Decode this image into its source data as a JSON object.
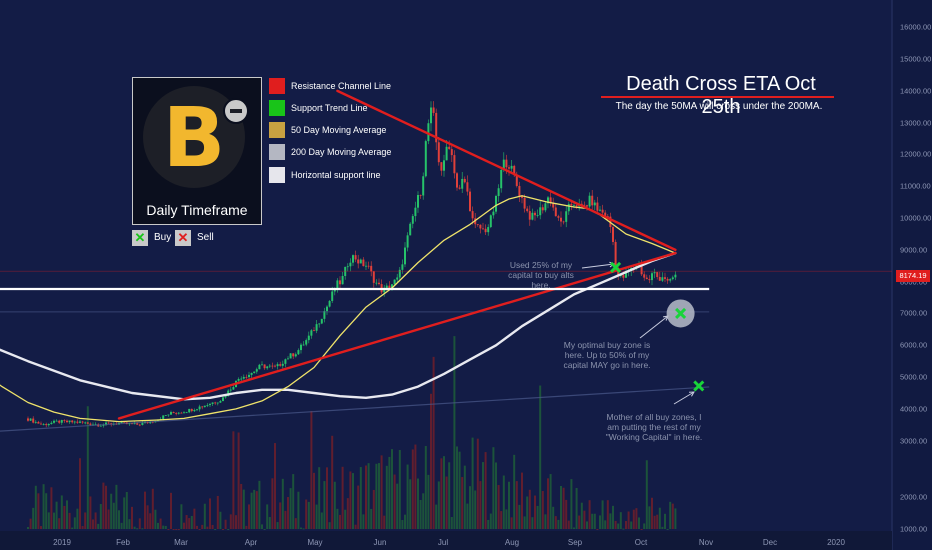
{
  "chart_data": {
    "type": "candlestick",
    "title": "Death Cross ETA Oct 25th",
    "subtitle": "The day the 50MA will cross under the 200MA.",
    "timeframe": "Daily Timeframe",
    "x_ticks": [
      "2019",
      "Feb",
      "Mar",
      "Apr",
      "May",
      "Jun",
      "Jul",
      "Aug",
      "Sep",
      "Oct",
      "Nov",
      "Dec",
      "2020"
    ],
    "y_ticks": [
      "16000.00",
      "15000.00",
      "14000.00",
      "13000.00",
      "12000.00",
      "11000.00",
      "10000.00",
      "9000.00",
      "8000.00",
      "7000.00",
      "6000.00",
      "5000.00",
      "4000.00",
      "3000.00",
      "2000.00",
      "1000.00"
    ],
    "y_range": [
      1000,
      16000
    ],
    "current_price_label": "8174.19",
    "current_price": 8174,
    "grid": false,
    "price_path": [
      [
        0,
        3700
      ],
      [
        6,
        3500
      ],
      [
        12,
        3600
      ],
      [
        20,
        3580
      ],
      [
        28,
        3500
      ],
      [
        35,
        3550
      ],
      [
        42,
        3500
      ],
      [
        48,
        3600
      ],
      [
        55,
        3850
      ],
      [
        62,
        3950
      ],
      [
        68,
        4100
      ],
      [
        75,
        4300
      ],
      [
        82,
        5000
      ],
      [
        86,
        5100
      ],
      [
        90,
        5350
      ],
      [
        96,
        5300
      ],
      [
        100,
        5600
      ],
      [
        104,
        5800
      ],
      [
        108,
        6200
      ],
      [
        112,
        6700
      ],
      [
        116,
        7300
      ],
      [
        119,
        7900
      ],
      [
        121,
        8000
      ],
      [
        124,
        8700
      ],
      [
        126,
        8800
      ],
      [
        128,
        8600
      ],
      [
        131,
        8500
      ],
      [
        134,
        8000
      ],
      [
        137,
        7700
      ],
      [
        140,
        7900
      ],
      [
        143,
        8100
      ],
      [
        146,
        9200
      ],
      [
        149,
        10200
      ],
      [
        152,
        11000
      ],
      [
        154,
        12800
      ],
      [
        156,
        13500
      ],
      [
        158,
        12000
      ],
      [
        160,
        11400
      ],
      [
        162,
        12500
      ],
      [
        164,
        11800
      ],
      [
        166,
        10700
      ],
      [
        168,
        11300
      ],
      [
        170,
        10600
      ],
      [
        172,
        9700
      ],
      [
        174,
        9700
      ],
      [
        176,
        9600
      ],
      [
        178,
        9800
      ],
      [
        181,
        10700
      ],
      [
        183,
        11700
      ],
      [
        185,
        11800
      ],
      [
        187,
        11400
      ],
      [
        189,
        10900
      ],
      [
        191,
        10500
      ],
      [
        193,
        10100
      ],
      [
        195,
        10000
      ],
      [
        197,
        10200
      ],
      [
        199,
        10400
      ],
      [
        201,
        10700
      ],
      [
        203,
        10200
      ],
      [
        205,
        9800
      ],
      [
        207,
        10000
      ],
      [
        209,
        10400
      ],
      [
        211,
        10500
      ],
      [
        213,
        10300
      ],
      [
        215,
        10400
      ],
      [
        217,
        10600
      ],
      [
        219,
        10300
      ],
      [
        221,
        10200
      ],
      [
        223,
        10100
      ],
      [
        225,
        9600
      ],
      [
        227,
        8200
      ],
      [
        229,
        8100
      ],
      [
        231,
        8300
      ],
      [
        233,
        8400
      ],
      [
        235,
        8600
      ],
      [
        237,
        8200
      ],
      [
        239,
        8000
      ],
      [
        241,
        8300
      ],
      [
        243,
        8100
      ],
      [
        245,
        8200
      ],
      [
        247,
        7900
      ],
      [
        249,
        8200
      ]
    ],
    "volume_path": [
      [
        0,
        1450
      ],
      [
        20,
        1500
      ],
      [
        40,
        1520
      ],
      [
        60,
        1470
      ],
      [
        80,
        1520
      ],
      [
        100,
        1700
      ],
      [
        120,
        1850
      ],
      [
        135,
        2200
      ],
      [
        150,
        2300
      ],
      [
        160,
        2400
      ],
      [
        170,
        2400
      ],
      [
        180,
        2300
      ],
      [
        190,
        1950
      ],
      [
        200,
        1700
      ],
      [
        210,
        1550
      ],
      [
        220,
        1300
      ],
      [
        230,
        1250
      ],
      [
        240,
        1250
      ],
      [
        249,
        1100
      ]
    ],
    "ma50_path": [
      [
        -30,
        6200
      ],
      [
        -20,
        5300
      ],
      [
        -10,
        4700
      ],
      [
        0,
        4200
      ],
      [
        10,
        3900
      ],
      [
        20,
        3700
      ],
      [
        35,
        3600
      ],
      [
        50,
        3650
      ],
      [
        60,
        3700
      ],
      [
        70,
        3850
      ],
      [
        80,
        4000
      ],
      [
        90,
        4250
      ],
      [
        100,
        4700
      ],
      [
        110,
        5300
      ],
      [
        120,
        6300
      ],
      [
        130,
        7200
      ],
      [
        140,
        7800
      ],
      [
        150,
        8600
      ],
      [
        160,
        9300
      ],
      [
        170,
        9800
      ],
      [
        180,
        10400
      ],
      [
        185,
        10600
      ],
      [
        190,
        10700
      ],
      [
        200,
        10500
      ],
      [
        210,
        10350
      ],
      [
        215,
        10300
      ],
      [
        220,
        10100
      ],
      [
        230,
        9500
      ],
      [
        240,
        9200
      ],
      [
        249,
        8900
      ]
    ],
    "ma200_path": [
      [
        -30,
        6600
      ],
      [
        -15,
        6000
      ],
      [
        0,
        5500
      ],
      [
        20,
        4900
      ],
      [
        40,
        4500
      ],
      [
        60,
        4300
      ],
      [
        70,
        4350
      ],
      [
        80,
        4500
      ],
      [
        90,
        4600
      ],
      [
        100,
        4600
      ],
      [
        110,
        4500
      ],
      [
        120,
        4400
      ],
      [
        130,
        4350
      ],
      [
        140,
        4450
      ],
      [
        150,
        4700
      ],
      [
        160,
        5100
      ],
      [
        170,
        5550
      ],
      [
        180,
        6000
      ],
      [
        190,
        6600
      ],
      [
        200,
        7100
      ],
      [
        210,
        7600
      ],
      [
        220,
        7950
      ],
      [
        230,
        8300
      ],
      [
        240,
        8650
      ],
      [
        249,
        8900
      ]
    ],
    "resistance_line": [
      [
        119,
        14000
      ],
      [
        249,
        9000
      ]
    ],
    "support_trend_line": [
      [
        35,
        3700
      ],
      [
        249,
        8900
      ]
    ],
    "horizontal_support": 7770,
    "series": [
      {
        "name": "Resistance Channel Line",
        "color": "#e01e1e"
      },
      {
        "name": "Support Trend Line",
        "color": "#19c419"
      },
      {
        "name": "50 Day Moving Average",
        "color": "#c8a141"
      },
      {
        "name": "200 Day Moving Average",
        "color": "#b4b7c2"
      },
      {
        "name": "Horizontal support line",
        "color": "#e6e6ec"
      }
    ],
    "markers": {
      "buy_label": "Buy",
      "sell_label": "Sell"
    },
    "buy_points": [
      {
        "day": 226,
        "price": 8450
      },
      {
        "day": 251,
        "price": 7000
      },
      {
        "day": 258,
        "price": 4720
      }
    ],
    "annotations": {
      "note1": "Used 25% of my capital to buy alts here.",
      "note2": "My optimal buy zone is here. Up to 50% of my capital MAY go in here.",
      "note3": "Mother of all buy zones, I am putting the rest of my \"Working Capital\" in here."
    }
  }
}
